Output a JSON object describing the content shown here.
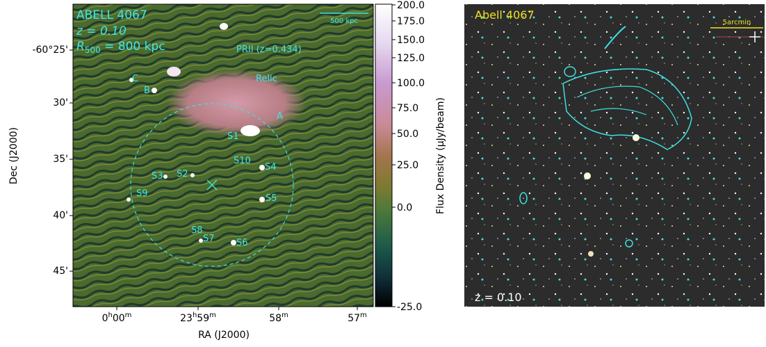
{
  "left_panel": {
    "title": "ABELL 4067",
    "redshift": "z = 0.10",
    "radius": [
      "R",
      "500",
      " = 800 kpc"
    ],
    "scale_bar": "500 kpc",
    "labels": [
      "PRII (z=0.434)",
      "Relic",
      "C",
      "B",
      "A",
      "S1",
      "S10",
      "S4",
      "S3",
      "S2",
      "S9",
      "S5",
      "S8",
      "S7",
      "S6"
    ],
    "y_ticks": [
      "-60°25'",
      "30'",
      "35'",
      "40'",
      "45'"
    ],
    "x_ticks": [
      [
        [
          "0",
          "h"
        ],
        [
          "00",
          "m"
        ]
      ],
      [
        [
          "23",
          "h"
        ],
        [
          "59",
          "m"
        ]
      ],
      [
        [
          "58",
          "m"
        ]
      ],
      [
        [
          "57",
          "m"
        ]
      ]
    ],
    "y_label": "Dec (J2000)",
    "x_label": "RA (J2000)"
  },
  "colorbar": {
    "ticks": [
      "200.0",
      "175.0",
      "150.0",
      "125.0",
      "100.0",
      "75.0",
      "50.0",
      "25.0",
      "0.0",
      "-25.0"
    ],
    "label": "Flux Density (μJy/beam)"
  },
  "right_panel": {
    "title": "Abell 4067",
    "scale_bar": "5arcmin",
    "redshift": "z = 0.10"
  }
}
